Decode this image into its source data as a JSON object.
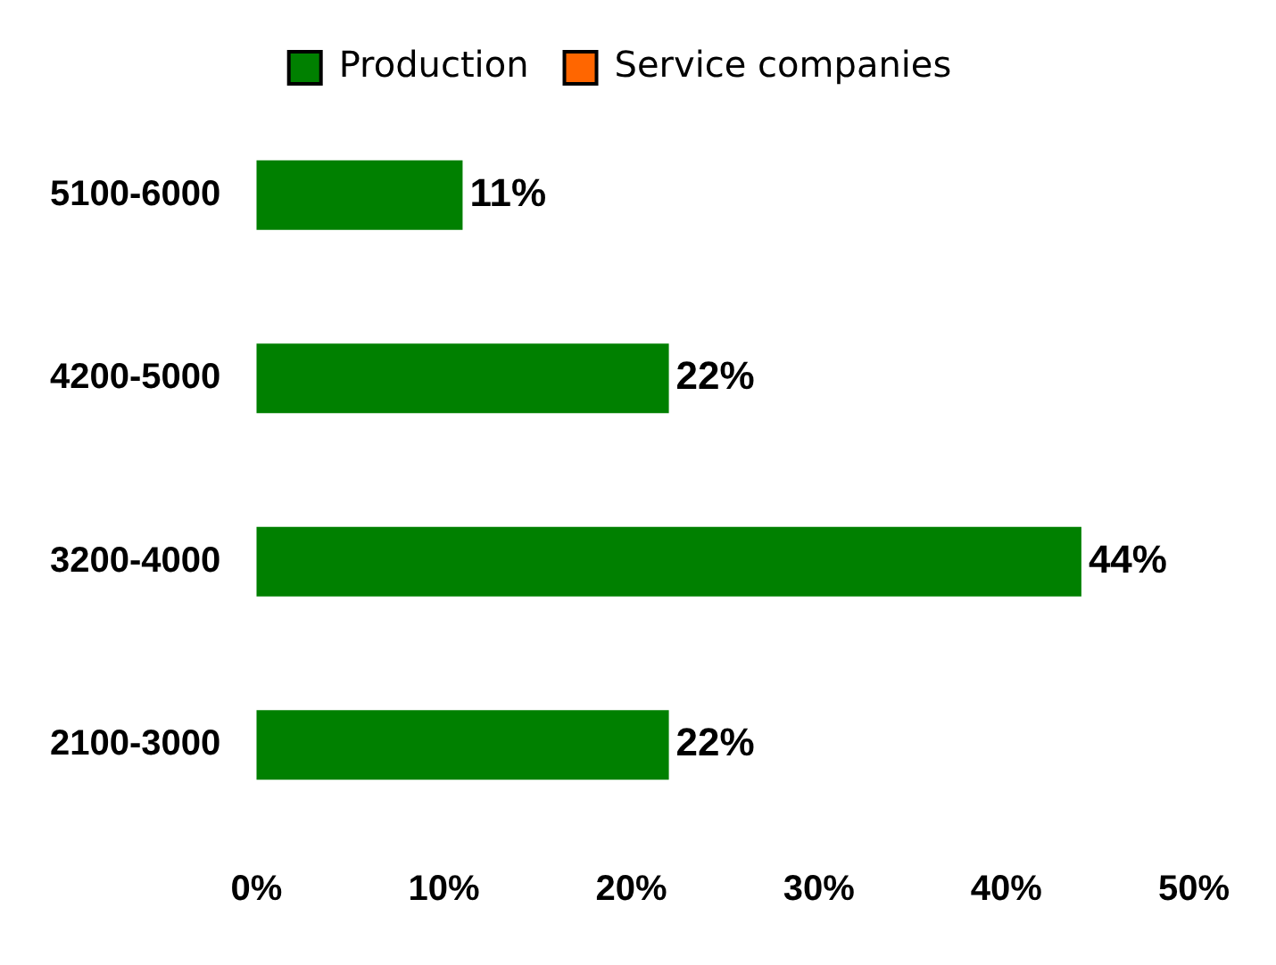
{
  "chart_data": {
    "type": "bar",
    "orientation": "horizontal",
    "categories": [
      "5100-6000",
      "4200-5000",
      "3200-4000",
      "2100-3000"
    ],
    "series": [
      {
        "name": "Production",
        "color": "#008000",
        "values": [
          11,
          22,
          44,
          22
        ],
        "value_labels": [
          "11%",
          "22%",
          "44%",
          "22%"
        ]
      },
      {
        "name": "Service companies",
        "color": "#ff6600",
        "values": [
          null,
          null,
          null,
          null
        ]
      }
    ],
    "xlim": [
      0,
      50
    ],
    "xticks": [
      {
        "value": 0,
        "label": "0%"
      },
      {
        "value": 10,
        "label": "10%"
      },
      {
        "value": 20,
        "label": "20%"
      },
      {
        "value": 30,
        "label": "30%"
      },
      {
        "value": 40,
        "label": "40%"
      },
      {
        "value": 50,
        "label": "50%"
      }
    ],
    "legend": "top"
  }
}
